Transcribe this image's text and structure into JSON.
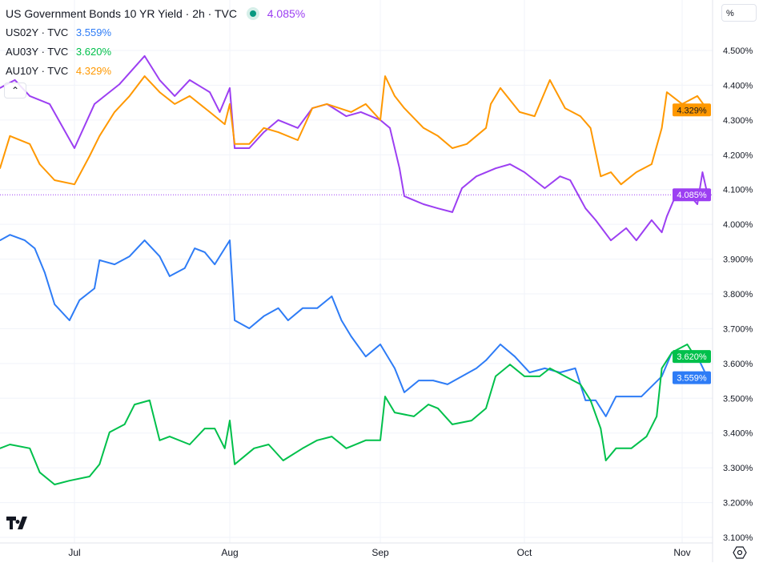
{
  "legend": {
    "main": {
      "label": "US Government Bonds 10 YR Yield · 2h · TVC",
      "value": "4.085%",
      "color": "#9c3ff2",
      "status_icon": "market-open-dot-icon"
    },
    "items": [
      {
        "label": "US02Y · TVC",
        "value": "3.559%",
        "color": "#2e7cf6"
      },
      {
        "label": "AU03Y · TVC",
        "value": "3.620%",
        "color": "#00c04b"
      },
      {
        "label": "AU10Y · TVC",
        "value": "4.329%",
        "color": "#ff9800"
      }
    ]
  },
  "toolbar": {
    "scale_mode_label": "%",
    "collapse_icon": "chevron-up-icon",
    "settings_icon": "settings-icon",
    "logo": "TV"
  },
  "chart_data": {
    "type": "line",
    "ylim": [
      3.1,
      4.5
    ],
    "y_ticks": [
      "4.500%",
      "4.400%",
      "4.300%",
      "4.200%",
      "4.100%",
      "4.000%",
      "3.900%",
      "3.800%",
      "3.700%",
      "3.600%",
      "3.500%",
      "3.400%",
      "3.300%",
      "3.200%",
      "3.100%"
    ],
    "x_ticks": [
      "Jul",
      "Aug",
      "Sep",
      "Oct",
      "Nov"
    ],
    "grid": true,
    "legend_position": "top-left",
    "last_value_labels": [
      {
        "series": "AU10Y",
        "text": "4.329%",
        "value": 4.329,
        "color": "#ff9800"
      },
      {
        "series": "US10Y",
        "text": "4.085%",
        "value": 4.085,
        "color": "#9c3ff2"
      },
      {
        "series": "AU03Y",
        "text": "3.620%",
        "value": 3.62,
        "color": "#00c04b"
      },
      {
        "series": "US02Y",
        "text": "3.559%",
        "value": 3.559,
        "color": "#2e7cf6"
      }
    ],
    "series": [
      {
        "name": "US10Y",
        "color": "#9c3ff2",
        "points": [
          [
            "06-16",
            4.392
          ],
          [
            "06-19",
            4.415
          ],
          [
            "06-22",
            4.369
          ],
          [
            "06-26",
            4.346
          ],
          [
            "07-01",
            4.219
          ],
          [
            "07-05",
            4.346
          ],
          [
            "07-10",
            4.403
          ],
          [
            "07-15",
            4.484
          ],
          [
            "07-18",
            4.415
          ],
          [
            "07-21",
            4.369
          ],
          [
            "07-24",
            4.415
          ],
          [
            "07-28",
            4.38
          ],
          [
            "07-30",
            4.323
          ],
          [
            "08-01",
            4.392
          ],
          [
            "08-02",
            4.219
          ],
          [
            "08-05",
            4.219
          ],
          [
            "08-08",
            4.265
          ],
          [
            "08-11",
            4.3
          ],
          [
            "08-15",
            4.277
          ],
          [
            "08-18",
            4.334
          ],
          [
            "08-21",
            4.346
          ],
          [
            "08-25",
            4.311
          ],
          [
            "08-28",
            4.323
          ],
          [
            "09-01",
            4.3
          ],
          [
            "09-03",
            4.277
          ],
          [
            "09-05",
            4.161
          ],
          [
            "09-06",
            4.081
          ],
          [
            "09-10",
            4.058
          ],
          [
            "09-13",
            4.046
          ],
          [
            "09-16",
            4.035
          ],
          [
            "09-18",
            4.104
          ],
          [
            "09-21",
            4.138
          ],
          [
            "09-25",
            4.161
          ],
          [
            "09-28",
            4.173
          ],
          [
            "10-01",
            4.15
          ],
          [
            "10-05",
            4.104
          ],
          [
            "10-08",
            4.138
          ],
          [
            "10-10",
            4.127
          ],
          [
            "10-13",
            4.046
          ],
          [
            "10-15",
            4.012
          ],
          [
            "10-18",
            3.954
          ],
          [
            "10-21",
            3.989
          ],
          [
            "10-23",
            3.954
          ],
          [
            "10-26",
            4.012
          ],
          [
            "10-28",
            3.977
          ],
          [
            "10-29",
            4.023
          ],
          [
            "10-31",
            4.092
          ],
          [
            "11-02",
            4.092
          ],
          [
            "11-04",
            4.058
          ],
          [
            "11-05",
            4.15
          ],
          [
            "11-06",
            4.085
          ]
        ]
      },
      {
        "name": "AU10Y",
        "color": "#ff9800",
        "points": [
          [
            "06-16",
            4.161
          ],
          [
            "06-18",
            4.254
          ],
          [
            "06-22",
            4.231
          ],
          [
            "06-24",
            4.173
          ],
          [
            "06-27",
            4.127
          ],
          [
            "07-01",
            4.115
          ],
          [
            "07-04",
            4.196
          ],
          [
            "07-06",
            4.254
          ],
          [
            "07-09",
            4.323
          ],
          [
            "07-12",
            4.369
          ],
          [
            "07-15",
            4.426
          ],
          [
            "07-18",
            4.38
          ],
          [
            "07-21",
            4.346
          ],
          [
            "07-24",
            4.369
          ],
          [
            "07-28",
            4.323
          ],
          [
            "07-31",
            4.288
          ],
          [
            "08-01",
            4.346
          ],
          [
            "08-02",
            4.231
          ],
          [
            "08-05",
            4.231
          ],
          [
            "08-08",
            4.277
          ],
          [
            "08-11",
            4.265
          ],
          [
            "08-15",
            4.242
          ],
          [
            "08-18",
            4.334
          ],
          [
            "08-21",
            4.346
          ],
          [
            "08-26",
            4.323
          ],
          [
            "08-29",
            4.346
          ],
          [
            "09-01",
            4.3
          ],
          [
            "09-02",
            4.426
          ],
          [
            "09-04",
            4.369
          ],
          [
            "09-06",
            4.334
          ],
          [
            "09-10",
            4.277
          ],
          [
            "09-13",
            4.254
          ],
          [
            "09-16",
            4.219
          ],
          [
            "09-19",
            4.231
          ],
          [
            "09-23",
            4.277
          ],
          [
            "09-24",
            4.346
          ],
          [
            "09-26",
            4.392
          ],
          [
            "09-30",
            4.323
          ],
          [
            "10-03",
            4.311
          ],
          [
            "10-06",
            4.415
          ],
          [
            "10-09",
            4.334
          ],
          [
            "10-12",
            4.311
          ],
          [
            "10-14",
            4.277
          ],
          [
            "10-16",
            4.138
          ],
          [
            "10-18",
            4.15
          ],
          [
            "10-20",
            4.115
          ],
          [
            "10-23",
            4.15
          ],
          [
            "10-26",
            4.173
          ],
          [
            "10-28",
            4.277
          ],
          [
            "10-29",
            4.38
          ],
          [
            "11-01",
            4.346
          ],
          [
            "11-04",
            4.369
          ],
          [
            "11-06",
            4.329
          ]
        ]
      },
      {
        "name": "US02Y",
        "color": "#2e7cf6",
        "points": [
          [
            "06-16",
            3.954
          ],
          [
            "06-18",
            3.97
          ],
          [
            "06-21",
            3.954
          ],
          [
            "06-23",
            3.931
          ],
          [
            "06-25",
            3.862
          ],
          [
            "06-27",
            3.77
          ],
          [
            "06-30",
            3.724
          ],
          [
            "07-02",
            3.782
          ],
          [
            "07-05",
            3.816
          ],
          [
            "07-06",
            3.897
          ],
          [
            "07-09",
            3.885
          ],
          [
            "07-12",
            3.908
          ],
          [
            "07-15",
            3.954
          ],
          [
            "07-18",
            3.908
          ],
          [
            "07-20",
            3.851
          ],
          [
            "07-23",
            3.874
          ],
          [
            "07-25",
            3.931
          ],
          [
            "07-27",
            3.92
          ],
          [
            "07-29",
            3.885
          ],
          [
            "08-01",
            3.954
          ],
          [
            "08-02",
            3.724
          ],
          [
            "08-05",
            3.701
          ],
          [
            "08-08",
            3.736
          ],
          [
            "08-11",
            3.759
          ],
          [
            "08-13",
            3.724
          ],
          [
            "08-16",
            3.759
          ],
          [
            "08-19",
            3.759
          ],
          [
            "08-22",
            3.793
          ],
          [
            "08-24",
            3.724
          ],
          [
            "08-26",
            3.678
          ],
          [
            "08-29",
            3.62
          ],
          [
            "09-01",
            3.655
          ],
          [
            "09-04",
            3.586
          ],
          [
            "09-06",
            3.517
          ],
          [
            "09-09",
            3.551
          ],
          [
            "09-12",
            3.551
          ],
          [
            "09-15",
            3.54
          ],
          [
            "09-18",
            3.563
          ],
          [
            "09-21",
            3.586
          ],
          [
            "09-23",
            3.609
          ],
          [
            "09-26",
            3.655
          ],
          [
            "09-29",
            3.62
          ],
          [
            "10-02",
            3.574
          ],
          [
            "10-05",
            3.586
          ],
          [
            "10-08",
            3.574
          ],
          [
            "10-11",
            3.586
          ],
          [
            "10-13",
            3.494
          ],
          [
            "10-15",
            3.494
          ],
          [
            "10-17",
            3.448
          ],
          [
            "10-19",
            3.505
          ],
          [
            "10-22",
            3.505
          ],
          [
            "10-24",
            3.505
          ],
          [
            "10-28",
            3.563
          ],
          [
            "10-30",
            3.632
          ],
          [
            "11-02",
            3.609
          ],
          [
            "11-04",
            3.62
          ],
          [
            "11-06",
            3.559
          ]
        ]
      },
      {
        "name": "AU03Y",
        "color": "#00c04b",
        "points": [
          [
            "06-16",
            3.356
          ],
          [
            "06-18",
            3.367
          ],
          [
            "06-22",
            3.356
          ],
          [
            "06-24",
            3.287
          ],
          [
            "06-27",
            3.252
          ],
          [
            "06-30",
            3.263
          ],
          [
            "07-04",
            3.275
          ],
          [
            "07-06",
            3.31
          ],
          [
            "07-08",
            3.402
          ],
          [
            "07-11",
            3.425
          ],
          [
            "07-13",
            3.482
          ],
          [
            "07-16",
            3.494
          ],
          [
            "07-18",
            3.379
          ],
          [
            "07-20",
            3.39
          ],
          [
            "07-24",
            3.367
          ],
          [
            "07-27",
            3.413
          ],
          [
            "07-29",
            3.413
          ],
          [
            "07-31",
            3.356
          ],
          [
            "08-01",
            3.436
          ],
          [
            "08-02",
            3.31
          ],
          [
            "08-06",
            3.356
          ],
          [
            "08-09",
            3.367
          ],
          [
            "08-12",
            3.321
          ],
          [
            "08-16",
            3.356
          ],
          [
            "08-19",
            3.379
          ],
          [
            "08-22",
            3.39
          ],
          [
            "08-25",
            3.356
          ],
          [
            "08-29",
            3.379
          ],
          [
            "09-01",
            3.379
          ],
          [
            "09-02",
            3.505
          ],
          [
            "09-04",
            3.459
          ],
          [
            "09-08",
            3.448
          ],
          [
            "09-11",
            3.482
          ],
          [
            "09-13",
            3.471
          ],
          [
            "09-16",
            3.425
          ],
          [
            "09-20",
            3.436
          ],
          [
            "09-23",
            3.471
          ],
          [
            "09-25",
            3.563
          ],
          [
            "09-28",
            3.597
          ],
          [
            "10-01",
            3.563
          ],
          [
            "10-04",
            3.563
          ],
          [
            "10-06",
            3.586
          ],
          [
            "10-09",
            3.563
          ],
          [
            "10-12",
            3.54
          ],
          [
            "10-14",
            3.494
          ],
          [
            "10-16",
            3.413
          ],
          [
            "10-17",
            3.321
          ],
          [
            "10-19",
            3.356
          ],
          [
            "10-22",
            3.356
          ],
          [
            "10-25",
            3.39
          ],
          [
            "10-27",
            3.448
          ],
          [
            "10-28",
            3.586
          ],
          [
            "10-30",
            3.632
          ],
          [
            "11-02",
            3.655
          ],
          [
            "11-03",
            3.632
          ],
          [
            "11-06",
            3.62
          ]
        ]
      }
    ]
  }
}
